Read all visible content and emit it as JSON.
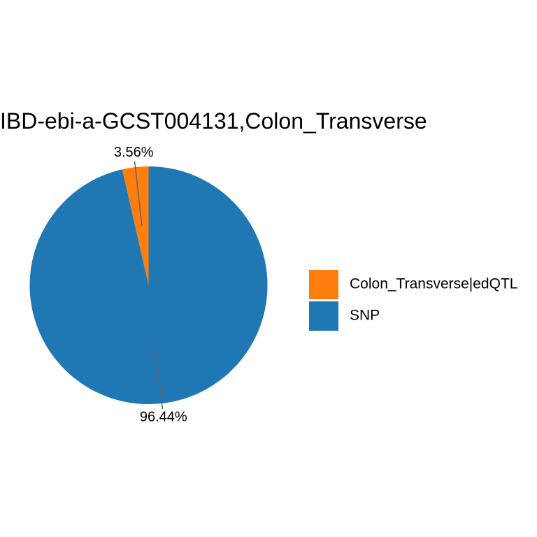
{
  "chart_data": {
    "type": "pie",
    "title": "IBD-ebi-a-GCST004131,Colon_Transverse",
    "slices": [
      {
        "label": "Colon_Transverse|edQTL",
        "value": 3.56,
        "value_label": "3.56%",
        "color": "#FF7F0E"
      },
      {
        "label": "SNP",
        "value": 96.44,
        "value_label": "96.44%",
        "color": "#1F77B4"
      }
    ],
    "legend": {
      "placement": "right"
    }
  }
}
